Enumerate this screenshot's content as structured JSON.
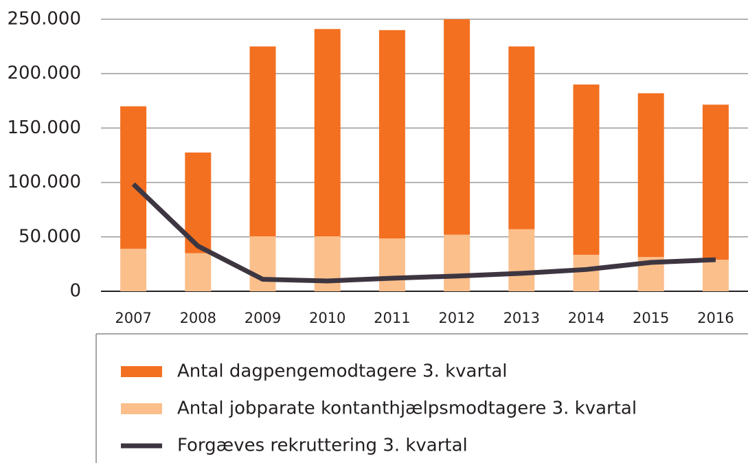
{
  "chart_data": {
    "type": "bar",
    "categories": [
      "2007",
      "2008",
      "2009",
      "2010",
      "2011",
      "2012",
      "2013",
      "2014",
      "2015",
      "2016"
    ],
    "series": [
      {
        "name": "Antal dagpengemodtagere 3. kvartal",
        "type": "bar",
        "color": "#f37021",
        "values": [
          131000,
          92500,
          174500,
          190500,
          191500,
          198000,
          168000,
          156500,
          150500,
          142500
        ]
      },
      {
        "name": "Antal jobparate kontanthjælpsmodtagere 3. kvartal",
        "type": "bar",
        "color": "#fbbf8c",
        "values": [
          39000,
          35000,
          50500,
          50500,
          48500,
          52000,
          57000,
          33500,
          31500,
          29000
        ]
      },
      {
        "name": "Forgæves rekruttering 3. kvartal",
        "type": "line",
        "color": "#3d3641",
        "values": [
          98500,
          41500,
          11000,
          9500,
          12000,
          14000,
          16500,
          20000,
          26500,
          29000
        ]
      }
    ],
    "stacked": true,
    "ylim": [
      0,
      250000
    ],
    "yticks": [
      0,
      {
        "value": 50000,
        "label": "50.000"
      },
      {
        "value": 100000,
        "label": "100.000"
      },
      {
        "value": 150000,
        "label": "150.000"
      },
      {
        "value": 200000,
        "label": "200.000"
      },
      {
        "value": 250000,
        "label": "250.000"
      }
    ],
    "grid": true
  }
}
